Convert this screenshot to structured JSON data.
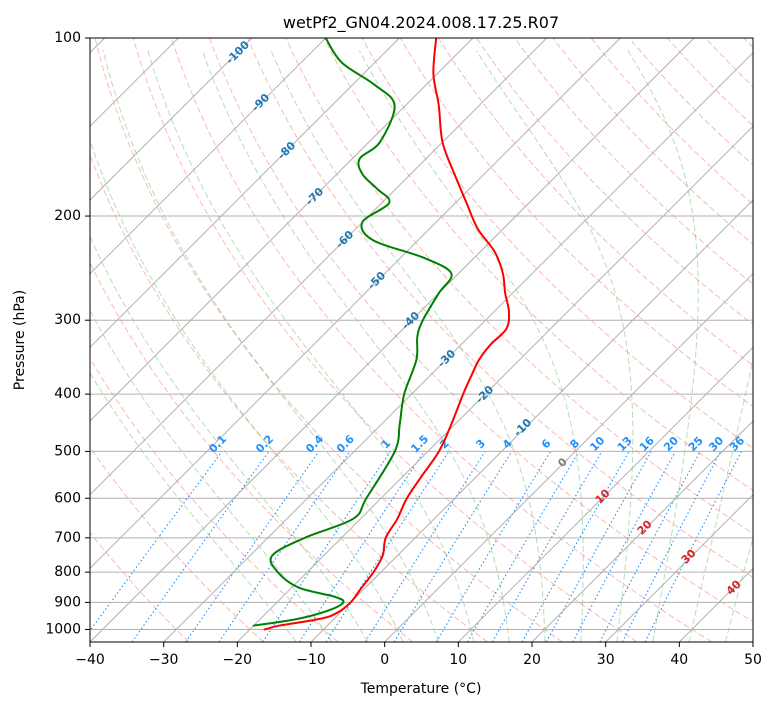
{
  "chart_data": {
    "type": "line",
    "title": "wetPf2_GN04.2024.008.17.25.R07",
    "xlabel": "Temperature (°C)",
    "ylabel": "Pressure (hPa)",
    "xlim": [
      -40,
      50
    ],
    "ylim": [
      1050,
      100
    ],
    "y_scale": "log",
    "skew": true,
    "grid": true,
    "x_ticks": [
      -40,
      -30,
      -20,
      -10,
      0,
      10,
      20,
      30,
      40,
      50
    ],
    "y_ticks": [
      100,
      200,
      300,
      400,
      500,
      600,
      700,
      800,
      900,
      1000
    ],
    "series": [
      {
        "role": "temperature",
        "color": "#ff0000",
        "pressure": [
          1000,
          985,
          960,
          940,
          900,
          850,
          800,
          750,
          700,
          650,
          600,
          550,
          500,
          450,
          400,
          370,
          350,
          330,
          310,
          290,
          270,
          250,
          230,
          210,
          190,
          170,
          150,
          130,
          115,
          100
        ],
        "temperature": [
          -18,
          -16.5,
          -12,
          -10.5,
          -10,
          -10.5,
          -11,
          -12,
          -14,
          -15,
          -16.5,
          -17.5,
          -18.5,
          -20.5,
          -23,
          -24.5,
          -25.5,
          -26,
          -26,
          -28,
          -31,
          -34,
          -38,
          -43.5,
          -48.5,
          -54,
          -60,
          -65.5,
          -70.5,
          -75
        ]
      },
      {
        "role": "dewpoint",
        "color": "#008000",
        "pressure": [
          985,
          960,
          930,
          900,
          880,
          850,
          800,
          750,
          700,
          650,
          600,
          500,
          450,
          400,
          350,
          320,
          300,
          270,
          250,
          235,
          220,
          205,
          190,
          180,
          170,
          160,
          150,
          130,
          120,
          110,
          100
        ],
        "temperature": [
          -20,
          -15,
          -12,
          -11,
          -13,
          -19,
          -24,
          -27,
          -25,
          -21,
          -22,
          -24.5,
          -27.5,
          -31,
          -34,
          -37,
          -38.5,
          -40,
          -41,
          -47,
          -56,
          -60,
          -59,
          -62.5,
          -66.5,
          -69,
          -68.5,
          -71.5,
          -77,
          -84.5,
          -90
        ]
      }
    ],
    "isotherm_labels": [
      "-100",
      "-90",
      "-80",
      "-70",
      "-60",
      "-50",
      "-40",
      "-30",
      "-20",
      "-10"
    ],
    "isotherm_label_color": "#1f77b4",
    "mixing_ratio_labels": [
      "0.1",
      "0.2",
      "0.4",
      "0.6",
      "1",
      "1.5",
      "2",
      "3",
      "4",
      "6",
      "8",
      "10",
      "13",
      "16",
      "20",
      "25",
      "30",
      "36"
    ],
    "mixing_ratio_label_color": "#1e90ff",
    "moist_adiabat_labels": [
      "0",
      "10",
      "20",
      "30",
      "40"
    ],
    "moist_adiabat_label_colors": [
      "#808080",
      "#d62728",
      "#d62728",
      "#d62728",
      "#d62728"
    ]
  }
}
